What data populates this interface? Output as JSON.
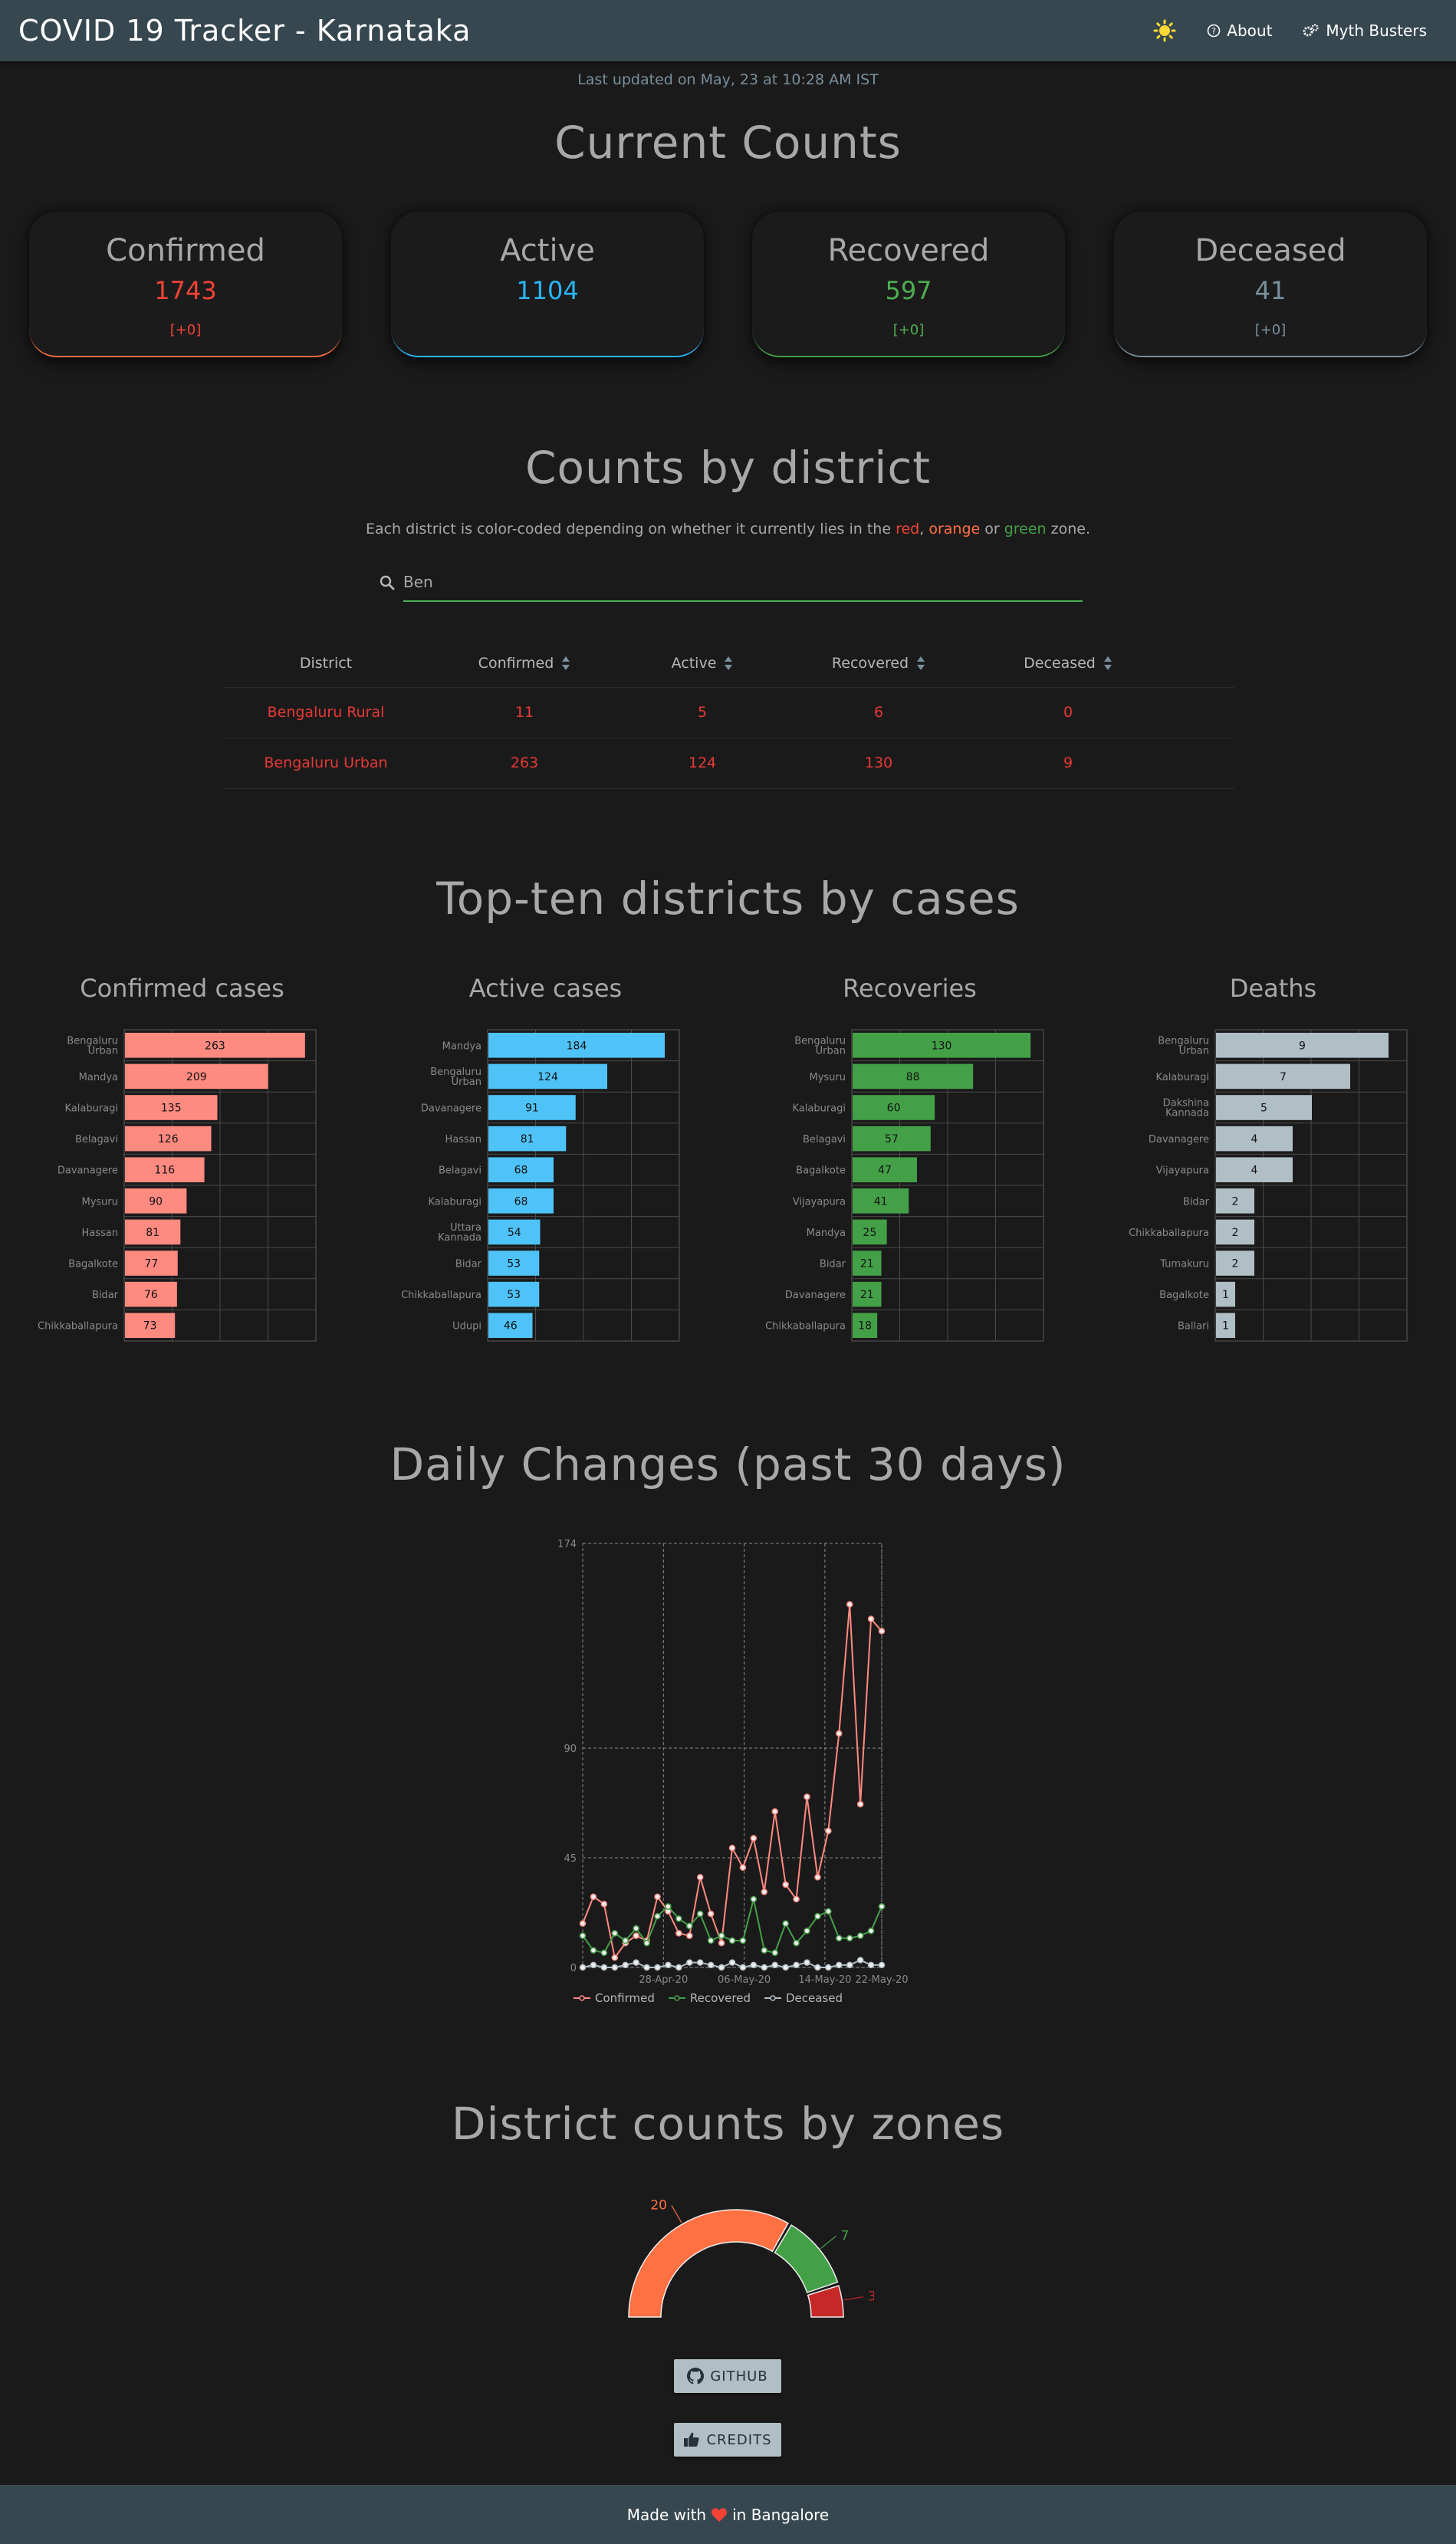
{
  "navbar": {
    "title": "COVID 19 Tracker - Karnataka",
    "about": "About",
    "myth_busters": "Myth Busters"
  },
  "last_updated": "Last updated on May, 23 at 10:28 AM IST",
  "current_counts": {
    "heading": "Current Counts",
    "cards": [
      {
        "label": "Confirmed",
        "value": "1743",
        "delta": "[+0]",
        "color": "#f44336"
      },
      {
        "label": "Active",
        "value": "1104",
        "delta": "",
        "color": "#29b6f6"
      },
      {
        "label": "Recovered",
        "value": "597",
        "delta": "[+0]",
        "color": "#4caf50"
      },
      {
        "label": "Deceased",
        "value": "41",
        "delta": "[+0]",
        "color": "#78909c"
      }
    ]
  },
  "district_section": {
    "heading": "Counts by district",
    "description": {
      "before": "Each district is color-coded depending on whether it currently lies in the ",
      "red": "red",
      "sep1": ", ",
      "orange": "orange",
      "sep2": " or ",
      "green": "green",
      "after": " zone."
    },
    "search_value": "Ben",
    "table": {
      "headers": [
        "District",
        "Confirmed",
        "Active",
        "Recovered",
        "Deceased"
      ],
      "rows": [
        [
          "Bengaluru Rural",
          "11",
          "5",
          "6",
          "0"
        ],
        [
          "Bengaluru Urban",
          "263",
          "124",
          "130",
          "9"
        ]
      ]
    }
  },
  "top_ten": {
    "heading": "Top-ten districts by cases",
    "charts": [
      {
        "title": "Confirmed cases",
        "color": "#ff8a80",
        "chart_data": {
          "type": "bar",
          "categories": [
            "Bengaluru Urban",
            "Mandya",
            "Kalaburagi",
            "Belagavi",
            "Davanagere",
            "Mysuru",
            "Hassan",
            "Bagalkote",
            "Bidar",
            "Chikkaballapura"
          ],
          "values": [
            263,
            209,
            135,
            126,
            116,
            90,
            81,
            77,
            76,
            73
          ],
          "xlim": [
            0,
            280
          ]
        }
      },
      {
        "title": "Active cases",
        "color": "#4fc3f7",
        "chart_data": {
          "type": "bar",
          "categories": [
            "Mandya",
            "Bengaluru Urban",
            "Davanagere",
            "Hassan",
            "Belagavi",
            "Kalaburagi",
            "Uttara Kannada",
            "Bidar",
            "Chikkaballapura",
            "Udupi"
          ],
          "values": [
            184,
            124,
            91,
            81,
            68,
            68,
            54,
            53,
            53,
            46
          ],
          "xlim": [
            0,
            200
          ]
        }
      },
      {
        "title": "Recoveries",
        "color": "#43a047",
        "chart_data": {
          "type": "bar",
          "categories": [
            "Bengaluru Urban",
            "Mysuru",
            "Kalaburagi",
            "Belagavi",
            "Bagalkote",
            "Vijayapura",
            "Mandya",
            "Bidar",
            "Davanagere",
            "Chikkaballapura"
          ],
          "values": [
            130,
            88,
            60,
            57,
            47,
            41,
            25,
            21,
            21,
            18
          ],
          "xlim": [
            0,
            140
          ]
        }
      },
      {
        "title": "Deaths",
        "color": "#b0bec5",
        "chart_data": {
          "type": "bar",
          "categories": [
            "Bengaluru Urban",
            "Kalaburagi",
            "Dakshina Kannada",
            "Davanagere",
            "Vijayapura",
            "Bidar",
            "Chikkaballapura",
            "Tumakuru",
            "Bagalkote",
            "Ballari"
          ],
          "values": [
            9,
            7,
            5,
            4,
            4,
            2,
            2,
            2,
            1,
            1
          ],
          "xlim": [
            0,
            10
          ]
        }
      }
    ]
  },
  "daily": {
    "heading": "Daily Changes (past 30 days)",
    "chart_data": {
      "type": "line",
      "x_ticks": [
        "28-Apr-20",
        "06-May-20",
        "14-May-20",
        "22-May-20"
      ],
      "y_ticks": [
        "0",
        "45",
        "90",
        "174"
      ],
      "ylim": [
        0,
        174
      ],
      "series": [
        {
          "name": "Confirmed",
          "color": "#ff8a80",
          "values": [
            18,
            29,
            26,
            4,
            10,
            13,
            11,
            29,
            23,
            14,
            13,
            37,
            22,
            10,
            49,
            41,
            53,
            31,
            64,
            34,
            28,
            70,
            37,
            56,
            96,
            149,
            67,
            143,
            138
          ]
        },
        {
          "name": "Recovered",
          "color": "#43a047",
          "values": [
            13,
            7,
            6,
            14,
            11,
            16,
            10,
            21,
            25,
            20,
            17,
            22,
            11,
            13,
            11,
            11,
            28,
            7,
            6,
            18,
            10,
            15,
            21,
            23,
            12,
            12,
            13,
            15,
            25
          ]
        },
        {
          "name": "Deceased",
          "color": "#b0bec5",
          "values": [
            0,
            1,
            0,
            0,
            1,
            2,
            0,
            0,
            1,
            0,
            2,
            2,
            1,
            0,
            2,
            0,
            1,
            0,
            1,
            0,
            1,
            2,
            0,
            0,
            1,
            1,
            3,
            1,
            1
          ]
        }
      ]
    }
  },
  "zones": {
    "heading": "District counts by zones",
    "chart_data": {
      "type": "pie",
      "categories": [
        "Orange",
        "Green",
        "Red"
      ],
      "values": [
        20,
        7,
        3
      ],
      "colors": [
        "#ff7043",
        "#43a047",
        "#c62828"
      ]
    }
  },
  "buttons": {
    "github": "GITHUB",
    "credits": "CREDITS"
  },
  "footer": {
    "before": "Made with",
    "after": "in Bangalore"
  }
}
